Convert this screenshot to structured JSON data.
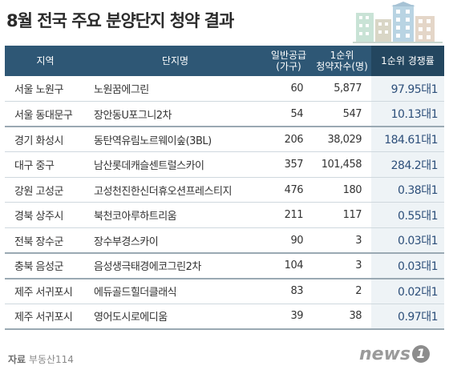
{
  "title": "8월 전국 주요 분양단지 청약 결과",
  "headers": {
    "region": "지역",
    "complex": "단지명",
    "supply_line1": "일반공급",
    "supply_line2": "(가구)",
    "applicants_line1": "1순위",
    "applicants_line2": "청약자수(명)",
    "rate": "1순위 경쟁률"
  },
  "rows": [
    {
      "region": "서울 노원구",
      "complex": "노원꿈에그린",
      "supply": "60",
      "applicants": "5,877",
      "rate": "97.95대1"
    },
    {
      "region": "서울 동대문구",
      "complex": "장안동U포그니2차",
      "supply": "54",
      "applicants": "547",
      "rate": "10.13대1"
    },
    {
      "region": "경기 화성시",
      "complex": "동탄역유림노르웨이숲(3BL)",
      "supply": "206",
      "applicants": "38,029",
      "rate": "184.61대1"
    },
    {
      "region": "대구 중구",
      "complex": "남산롯데캐슬센트럴스카이",
      "supply": "357",
      "applicants": "101,458",
      "rate": "284.2대1"
    },
    {
      "region": "강원 고성군",
      "complex": "고성천진한신더휴오션프레스티지",
      "supply": "476",
      "applicants": "180",
      "rate": "0.38대1"
    },
    {
      "region": "경북 상주시",
      "complex": "북천코아루하트리움",
      "supply": "211",
      "applicants": "117",
      "rate": "0.55대1"
    },
    {
      "region": "전북 장수군",
      "complex": "장수부경스카이",
      "supply": "90",
      "applicants": "3",
      "rate": "0.03대1"
    },
    {
      "region": "충북 음성군",
      "complex": "음성생극태경에코그린2차",
      "supply": "104",
      "applicants": "3",
      "rate": "0.03대1"
    },
    {
      "region": "제주 서귀포시",
      "complex": "에듀골드힐더클래식",
      "supply": "83",
      "applicants": "2",
      "rate": "0.02대1"
    },
    {
      "region": "제주 서귀포시",
      "complex": "영어도시로에디움",
      "supply": "39",
      "applicants": "38",
      "rate": "0.97대1"
    }
  ],
  "source_label": "자료",
  "source_value": "부동산114",
  "logo": {
    "text": "news",
    "mark": "1"
  },
  "colors": {
    "header": "#2e5775",
    "header_highlight": "#23465f",
    "rate_bg": "#eef3f6",
    "rate_text": "#2d4f7a"
  },
  "icon": "buildings-illustration"
}
